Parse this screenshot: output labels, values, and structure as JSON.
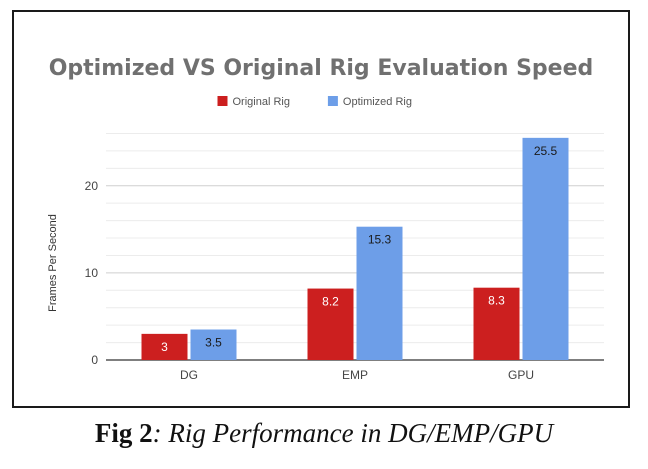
{
  "caption": {
    "lead": "Fig 2",
    "rest": ": Rig Performance in DG/EMP/GPU"
  },
  "chart_data": {
    "type": "bar",
    "title": "Optimized VS Original Rig Evaluation Speed",
    "xlabel": "",
    "ylabel": "Frames Per Second",
    "categories": [
      "DG",
      "EMP",
      "GPU"
    ],
    "series": [
      {
        "name": "Original Rig",
        "values": [
          3,
          8.2,
          8.3
        ],
        "color": "#cc1f1f",
        "label_color": "#ffffff"
      },
      {
        "name": "Optimized Rig",
        "values": [
          3.5,
          15.3,
          25.5
        ],
        "color": "#6d9ee8",
        "label_color": "#1a1a1a"
      }
    ],
    "yticks": [
      0,
      10,
      20
    ],
    "ylim": [
      0,
      26.4
    ],
    "grid": true,
    "legend": "top-center"
  }
}
